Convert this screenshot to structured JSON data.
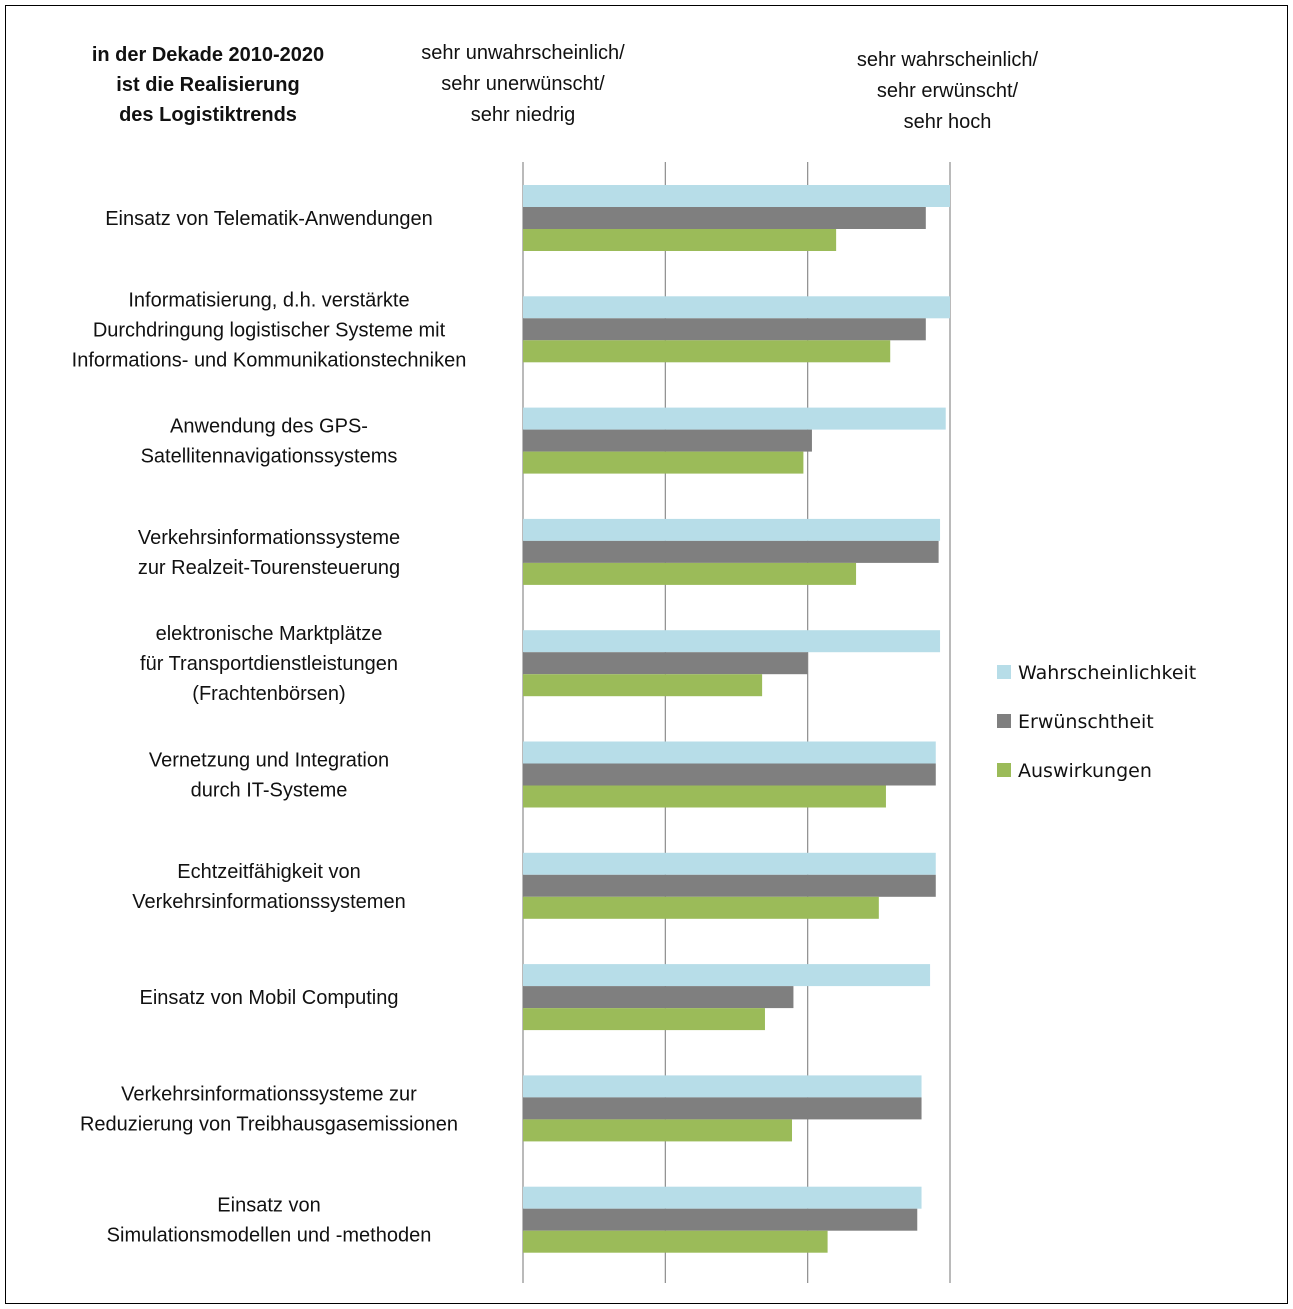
{
  "header": {
    "title_lines": [
      "in der Dekade 2010-2020",
      "ist die Realisierung",
      "des Logistiktrends"
    ],
    "scale_low_lines": [
      "sehr unwahrscheinlich/",
      "sehr unerwünscht/",
      "sehr niedrig"
    ],
    "scale_high_lines": [
      "sehr wahrscheinlich/",
      "sehr erwünscht/",
      "sehr hoch"
    ]
  },
  "chart_data": {
    "type": "bar",
    "orientation": "horizontal",
    "xlim": [
      0,
      3
    ],
    "grid": true,
    "legend_position": "right",
    "categories": [
      [
        "Einsatz von Telematik-Anwendungen"
      ],
      [
        "Informatisierung, d.h. verstärkte",
        "Durchdringung logistischer Systeme mit",
        "Informations- und Kommunikationstechniken"
      ],
      [
        "Anwendung des GPS-",
        "Satellitennavigationssystems"
      ],
      [
        "Verkehrsinformationssysteme",
        "zur Realzeit-Tourensteuerung"
      ],
      [
        "elektronische Marktplätze",
        "für Transportdienstleistungen",
        "(Frachtenbörsen)"
      ],
      [
        "Vernetzung und Integration",
        "durch IT-Systeme"
      ],
      [
        "Echtzeitfähigkeit von",
        "Verkehrsinformationssystemen"
      ],
      [
        "Einsatz von Mobil Computing"
      ],
      [
        "Verkehrsinformationssysteme zur",
        "Reduzierung von Treibhausgasemissionen"
      ],
      [
        "Einsatz von",
        "Simulationsmodellen und -methoden"
      ]
    ],
    "series": [
      {
        "name": "Wahrscheinlichkeit",
        "color": "#b7dde8",
        "values": [
          3.0,
          3.0,
          2.97,
          2.93,
          2.93,
          2.9,
          2.9,
          2.86,
          2.8,
          2.8
        ]
      },
      {
        "name": "Erwünschtheit",
        "color": "#7f7f7f",
        "values": [
          2.83,
          2.83,
          2.03,
          2.92,
          2.0,
          2.9,
          2.9,
          1.9,
          2.8,
          2.77
        ]
      },
      {
        "name": "Auswirkungen",
        "color": "#9bbb59",
        "values": [
          2.2,
          2.58,
          1.97,
          2.34,
          1.68,
          2.55,
          2.5,
          1.7,
          1.89,
          2.14
        ]
      }
    ]
  }
}
